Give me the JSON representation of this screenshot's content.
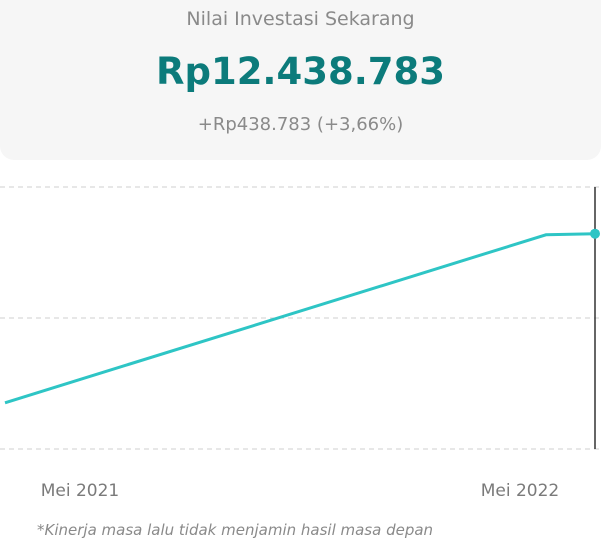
{
  "header": {
    "title": "Nilai Investasi Sekarang",
    "value": "Rp12.438.783",
    "change": "+Rp438.783 (+3,66%)"
  },
  "chart_data": {
    "type": "line",
    "categories": [
      "Mei 2021",
      "Mei 2022",
      null
    ],
    "values": [
      12000000,
      12436000,
      12438783
    ],
    "color": "#2ec5c5",
    "ylim": [
      11880000,
      12560000
    ]
  },
  "footnote": "*Kinerja masa lalu tidak menjamin hasil masa depan"
}
